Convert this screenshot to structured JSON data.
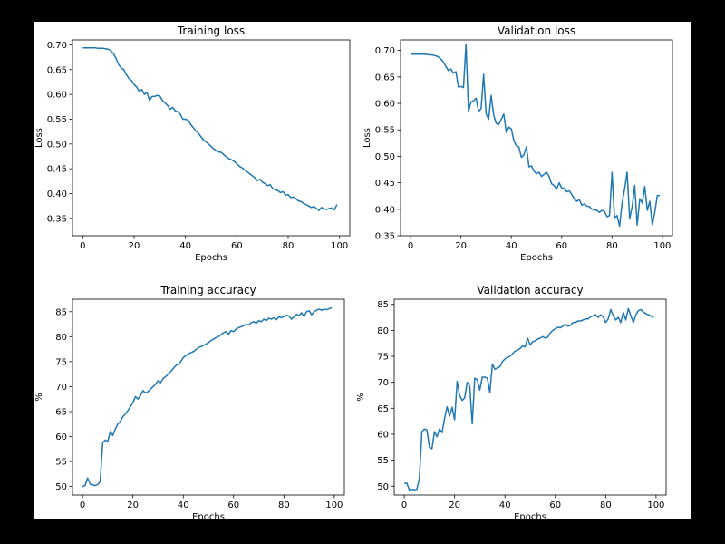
{
  "figure": {
    "background": "#000000",
    "facecolor": "#ffffff",
    "line_color": "#1f77b4"
  },
  "chart_data": [
    {
      "type": "line",
      "title": "Training loss",
      "xlabel": "Epochs",
      "ylabel": "Loss",
      "xlim": [
        -4,
        104
      ],
      "ylim": [
        0.315,
        0.71
      ],
      "xticks": [
        0,
        20,
        40,
        60,
        80,
        100
      ],
      "xtick_labels": [
        "0",
        "20",
        "40",
        "60",
        "80",
        "100"
      ],
      "yticks": [
        0.35,
        0.4,
        0.45,
        0.5,
        0.55,
        0.6,
        0.65,
        0.7
      ],
      "ytick_labels": [
        "0.35",
        "0.40",
        "0.45",
        "0.50",
        "0.55",
        "0.60",
        "0.65",
        "0.70"
      ],
      "grid": false,
      "series": [
        {
          "color": "#1f77b4",
          "x": [
            0,
            1,
            2,
            3,
            4,
            5,
            6,
            7,
            8,
            9,
            10,
            11,
            12,
            13,
            14,
            15,
            16,
            17,
            18,
            19,
            20,
            21,
            22,
            23,
            24,
            25,
            26,
            27,
            28,
            29,
            30,
            31,
            32,
            33,
            34,
            35,
            36,
            37,
            38,
            39,
            40,
            41,
            42,
            43,
            44,
            45,
            46,
            47,
            48,
            49,
            50,
            51,
            52,
            53,
            54,
            55,
            56,
            57,
            58,
            59,
            60,
            61,
            62,
            63,
            64,
            65,
            66,
            67,
            68,
            69,
            70,
            71,
            72,
            73,
            74,
            75,
            76,
            77,
            78,
            79,
            80,
            81,
            82,
            83,
            84,
            85,
            86,
            87,
            88,
            89,
            90,
            91,
            92,
            93,
            94,
            95,
            96,
            97,
            98,
            99
          ],
          "y": [
            0.694,
            0.694,
            0.694,
            0.694,
            0.694,
            0.694,
            0.693,
            0.693,
            0.693,
            0.692,
            0.691,
            0.688,
            0.682,
            0.672,
            0.66,
            0.653,
            0.65,
            0.64,
            0.632,
            0.628,
            0.62,
            0.615,
            0.606,
            0.61,
            0.6,
            0.604,
            0.588,
            0.596,
            0.596,
            0.598,
            0.597,
            0.588,
            0.583,
            0.578,
            0.57,
            0.574,
            0.567,
            0.565,
            0.56,
            0.55,
            0.55,
            0.548,
            0.54,
            0.533,
            0.527,
            0.522,
            0.515,
            0.508,
            0.504,
            0.5,
            0.495,
            0.49,
            0.487,
            0.484,
            0.483,
            0.478,
            0.474,
            0.47,
            0.468,
            0.465,
            0.46,
            0.455,
            0.452,
            0.448,
            0.444,
            0.44,
            0.436,
            0.432,
            0.426,
            0.429,
            0.423,
            0.42,
            0.416,
            0.418,
            0.41,
            0.408,
            0.406,
            0.402,
            0.404,
            0.397,
            0.398,
            0.392,
            0.393,
            0.39,
            0.385,
            0.384,
            0.38,
            0.378,
            0.375,
            0.372,
            0.374,
            0.37,
            0.366,
            0.372,
            0.369,
            0.368,
            0.37,
            0.371,
            0.367,
            0.378
          ]
        }
      ]
    },
    {
      "type": "line",
      "title": "Validation loss",
      "xlabel": "Epochs",
      "ylabel": "Loss",
      "xlim": [
        -4,
        104
      ],
      "ylim": [
        0.35,
        0.72
      ],
      "xticks": [
        0,
        20,
        40,
        60,
        80,
        100
      ],
      "xtick_labels": [
        "0",
        "20",
        "40",
        "60",
        "80",
        "100"
      ],
      "yticks": [
        0.35,
        0.4,
        0.45,
        0.5,
        0.55,
        0.6,
        0.65,
        0.7
      ],
      "ytick_labels": [
        "0.35",
        "0.40",
        "0.45",
        "0.50",
        "0.55",
        "0.60",
        "0.65",
        "0.70"
      ],
      "grid": false,
      "series": [
        {
          "color": "#1f77b4",
          "x": [
            0,
            1,
            2,
            3,
            4,
            5,
            6,
            7,
            8,
            9,
            10,
            11,
            12,
            13,
            14,
            15,
            16,
            17,
            18,
            19,
            20,
            21,
            22,
            23,
            24,
            25,
            26,
            27,
            28,
            29,
            30,
            31,
            32,
            33,
            34,
            35,
            36,
            37,
            38,
            39,
            40,
            41,
            42,
            43,
            44,
            45,
            46,
            47,
            48,
            49,
            50,
            51,
            52,
            53,
            54,
            55,
            56,
            57,
            58,
            59,
            60,
            61,
            62,
            63,
            64,
            65,
            66,
            67,
            68,
            69,
            70,
            71,
            72,
            73,
            74,
            75,
            76,
            77,
            78,
            79,
            80,
            81,
            82,
            83,
            84,
            85,
            86,
            87,
            88,
            89,
            90,
            91,
            92,
            93,
            94,
            95,
            96,
            97,
            98,
            99
          ],
          "y": [
            0.693,
            0.693,
            0.693,
            0.693,
            0.693,
            0.693,
            0.693,
            0.692,
            0.692,
            0.691,
            0.69,
            0.688,
            0.684,
            0.678,
            0.67,
            0.662,
            0.665,
            0.657,
            0.66,
            0.631,
            0.632,
            0.63,
            0.712,
            0.585,
            0.603,
            0.605,
            0.61,
            0.585,
            0.59,
            0.655,
            0.58,
            0.57,
            0.615,
            0.578,
            0.562,
            0.56,
            0.57,
            0.58,
            0.545,
            0.555,
            0.552,
            0.53,
            0.52,
            0.518,
            0.498,
            0.503,
            0.518,
            0.48,
            0.482,
            0.472,
            0.467,
            0.47,
            0.462,
            0.466,
            0.47,
            0.462,
            0.448,
            0.445,
            0.438,
            0.45,
            0.44,
            0.44,
            0.433,
            0.435,
            0.428,
            0.42,
            0.415,
            0.418,
            0.408,
            0.41,
            0.406,
            0.405,
            0.4,
            0.399,
            0.398,
            0.394,
            0.398,
            0.396,
            0.386,
            0.388,
            0.47,
            0.384,
            0.388,
            0.368,
            0.412,
            0.438,
            0.47,
            0.382,
            0.405,
            0.445,
            0.37,
            0.42,
            0.412,
            0.443,
            0.398,
            0.415,
            0.37,
            0.395,
            0.426,
            0.426
          ]
        }
      ]
    },
    {
      "type": "line",
      "title": "Training accuracy",
      "xlabel": "Epochs",
      "ylabel": "%",
      "xlim": [
        -4,
        104
      ],
      "ylim": [
        48.3,
        87.5
      ],
      "xticks": [
        0,
        20,
        40,
        60,
        80,
        100
      ],
      "xtick_labels": [
        "0",
        "20",
        "40",
        "60",
        "80",
        "100"
      ],
      "yticks": [
        50,
        55,
        60,
        65,
        70,
        75,
        80,
        85
      ],
      "ytick_labels": [
        "50",
        "55",
        "60",
        "65",
        "70",
        "75",
        "80",
        "85"
      ],
      "grid": false,
      "series": [
        {
          "color": "#1f77b4",
          "x": [
            0,
            1,
            2,
            3,
            4,
            5,
            6,
            7,
            8,
            9,
            10,
            11,
            12,
            13,
            14,
            15,
            16,
            17,
            18,
            19,
            20,
            21,
            22,
            23,
            24,
            25,
            26,
            27,
            28,
            29,
            30,
            31,
            32,
            33,
            34,
            35,
            36,
            37,
            38,
            39,
            40,
            41,
            42,
            43,
            44,
            45,
            46,
            47,
            48,
            49,
            50,
            51,
            52,
            53,
            54,
            55,
            56,
            57,
            58,
            59,
            60,
            61,
            62,
            63,
            64,
            65,
            66,
            67,
            68,
            69,
            70,
            71,
            72,
            73,
            74,
            75,
            76,
            77,
            78,
            79,
            80,
            81,
            82,
            83,
            84,
            85,
            86,
            87,
            88,
            89,
            90,
            91,
            92,
            93,
            94,
            95,
            96,
            97,
            98,
            99
          ],
          "y": [
            50.0,
            50.2,
            51.7,
            50.5,
            50.3,
            50.2,
            50.4,
            51.0,
            58.8,
            59.3,
            59.0,
            61.0,
            60.2,
            61.5,
            62.5,
            63.0,
            64.0,
            64.5,
            65.2,
            66.0,
            66.8,
            68.0,
            67.5,
            68.2,
            69.2,
            68.7,
            69.0,
            69.5,
            70.0,
            70.5,
            71.2,
            70.8,
            71.6,
            72.0,
            72.5,
            73.0,
            73.6,
            74.2,
            74.5,
            75.0,
            75.8,
            76.2,
            76.5,
            76.8,
            77.0,
            77.4,
            77.8,
            78.0,
            78.2,
            78.5,
            78.8,
            79.2,
            79.5,
            79.8,
            80.0,
            80.4,
            80.8,
            81.0,
            80.5,
            81.2,
            81.0,
            81.5,
            81.8,
            82.0,
            82.2,
            82.5,
            82.3,
            82.8,
            83.0,
            82.7,
            83.2,
            83.0,
            83.5,
            83.2,
            83.7,
            83.5,
            83.8,
            83.4,
            84.0,
            83.8,
            84.0,
            84.3,
            84.1,
            83.5,
            84.0,
            84.5,
            84.2,
            84.8,
            84.0,
            85.0,
            85.2,
            84.4,
            85.0,
            85.3,
            85.5,
            85.3,
            85.5,
            85.4,
            85.6,
            85.8
          ]
        }
      ]
    },
    {
      "type": "line",
      "title": "Validation accuracy",
      "xlabel": "Epochs",
      "ylabel": "%",
      "xlim": [
        -4,
        104
      ],
      "ylim": [
        48.3,
        86.0
      ],
      "xticks": [
        0,
        20,
        40,
        60,
        80,
        100
      ],
      "xtick_labels": [
        "0",
        "20",
        "40",
        "60",
        "80",
        "100"
      ],
      "yticks": [
        50,
        55,
        60,
        65,
        70,
        75,
        80,
        85
      ],
      "ytick_labels": [
        "50",
        "55",
        "60",
        "65",
        "70",
        "75",
        "80",
        "85"
      ],
      "grid": false,
      "series": [
        {
          "color": "#1f77b4",
          "x": [
            0,
            1,
            2,
            3,
            4,
            5,
            6,
            7,
            8,
            9,
            10,
            11,
            12,
            13,
            14,
            15,
            16,
            17,
            18,
            19,
            20,
            21,
            22,
            23,
            24,
            25,
            26,
            27,
            28,
            29,
            30,
            31,
            32,
            33,
            34,
            35,
            36,
            37,
            38,
            39,
            40,
            41,
            42,
            43,
            44,
            45,
            46,
            47,
            48,
            49,
            50,
            51,
            52,
            53,
            54,
            55,
            56,
            57,
            58,
            59,
            60,
            61,
            62,
            63,
            64,
            65,
            66,
            67,
            68,
            69,
            70,
            71,
            72,
            73,
            74,
            75,
            76,
            77,
            78,
            79,
            80,
            81,
            82,
            83,
            84,
            85,
            86,
            87,
            88,
            89,
            90,
            91,
            92,
            93,
            94,
            95,
            96,
            97,
            98,
            99
          ],
          "y": [
            50.5,
            50.6,
            49.3,
            49.4,
            49.3,
            49.4,
            51.5,
            60.5,
            61.0,
            60.8,
            57.5,
            57.2,
            60.5,
            59.5,
            61.0,
            60.3,
            63.0,
            65.3,
            63.5,
            65.2,
            62.8,
            70.2,
            67.5,
            66.5,
            67.0,
            70.0,
            69.3,
            62.0,
            70.8,
            70.5,
            68.5,
            71.0,
            71.0,
            70.8,
            68.0,
            73.5,
            72.5,
            72.8,
            73.0,
            74.0,
            74.5,
            74.8,
            75.0,
            75.5,
            76.0,
            76.2,
            76.5,
            77.0,
            76.8,
            78.5,
            77.2,
            77.8,
            78.0,
            78.3,
            78.5,
            78.8,
            78.5,
            78.7,
            79.5,
            80.0,
            80.3,
            80.6,
            80.5,
            80.8,
            81.2,
            80.8,
            81.0,
            81.5,
            81.5,
            81.8,
            81.8,
            82.0,
            82.2,
            82.2,
            82.6,
            82.8,
            83.0,
            82.5,
            83.0,
            82.6,
            81.5,
            82.2,
            84.0,
            82.8,
            82.0,
            82.5,
            81.5,
            83.5,
            82.0,
            84.2,
            82.8,
            81.5,
            83.0,
            83.8,
            84.0,
            83.5,
            83.2,
            83.0,
            82.8,
            82.5
          ]
        }
      ]
    }
  ]
}
